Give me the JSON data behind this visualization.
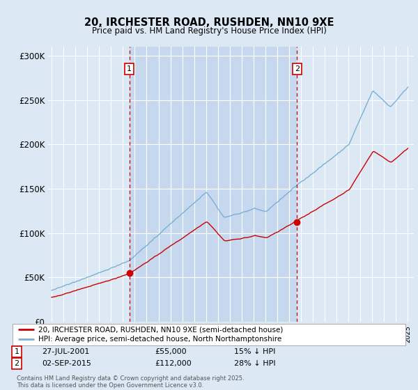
{
  "title_line1": "20, IRCHESTER ROAD, RUSHDEN, NN10 9XE",
  "title_line2": "Price paid vs. HM Land Registry's House Price Index (HPI)",
  "background_color": "#dce9f5",
  "plot_bg_color": "#dce9f5",
  "shade_color": "#c5d8ee",
  "hpi_color": "#7bafd4",
  "price_color": "#cc0000",
  "vline_color": "#cc0000",
  "ylim": [
    0,
    310000
  ],
  "yticks": [
    0,
    50000,
    100000,
    150000,
    200000,
    250000,
    300000
  ],
  "ytick_labels": [
    "£0",
    "£50K",
    "£100K",
    "£150K",
    "£200K",
    "£250K",
    "£300K"
  ],
  "sale1_price": 55000,
  "sale2_price": 112000,
  "legend_label_price": "20, IRCHESTER ROAD, RUSHDEN, NN10 9XE (semi-detached house)",
  "legend_label_hpi": "HPI: Average price, semi-detached house, North Northamptonshire",
  "table_row1": [
    "1",
    "27-JUL-2001",
    "£55,000",
    "15% ↓ HPI"
  ],
  "table_row2": [
    "2",
    "02-SEP-2015",
    "£112,000",
    "28% ↓ HPI"
  ],
  "footer": "Contains HM Land Registry data © Crown copyright and database right 2025.\nThis data is licensed under the Open Government Licence v3.0."
}
